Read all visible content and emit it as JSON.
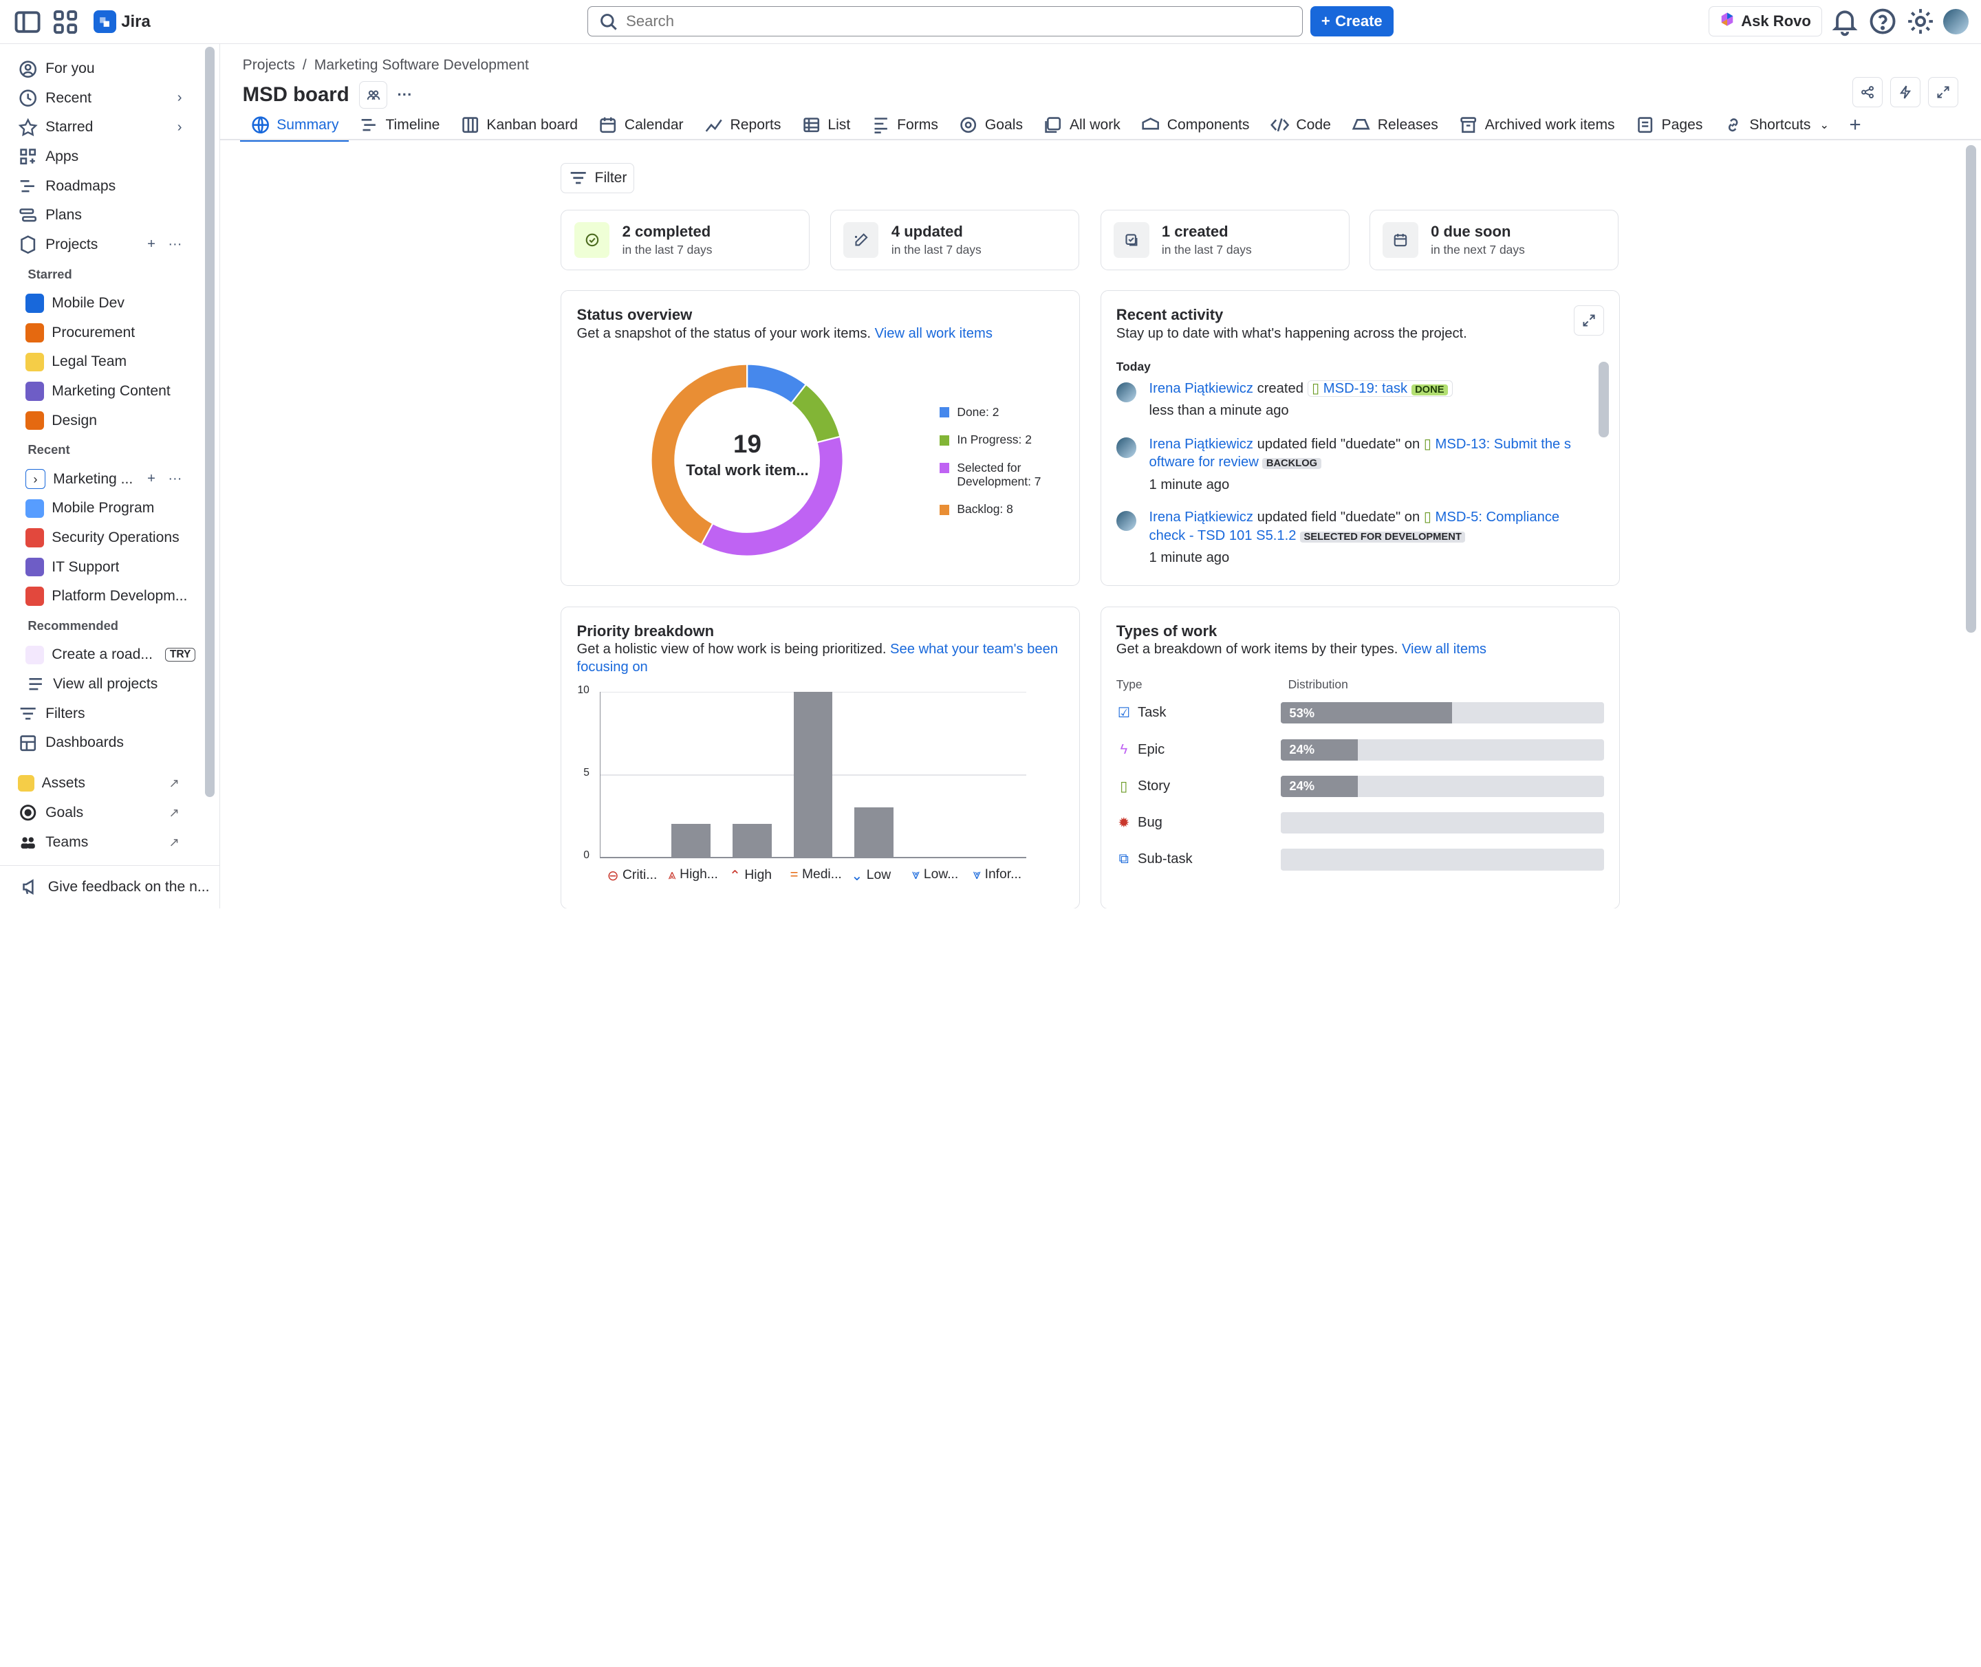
{
  "topbar": {
    "app_name": "Jira",
    "search_placeholder": "Search",
    "create_label": "Create",
    "ask_rovo_label": "Ask Rovo"
  },
  "sidebar": {
    "nav": [
      {
        "label": "For you",
        "icon": "user-circle-icon"
      },
      {
        "label": "Recent",
        "icon": "clock-icon"
      },
      {
        "label": "Starred",
        "icon": "star-icon"
      },
      {
        "label": "Apps",
        "icon": "apps-icon"
      },
      {
        "label": "Roadmaps",
        "icon": "roadmap-icon"
      },
      {
        "label": "Plans",
        "icon": "plans-icon"
      },
      {
        "label": "Projects",
        "icon": "projects-icon"
      }
    ],
    "starred_heading": "Starred",
    "starred": [
      {
        "label": "Mobile Dev",
        "color": "#1868db"
      },
      {
        "label": "Procurement",
        "color": "#e56910"
      },
      {
        "label": "Legal Team",
        "color": "#f5cd47"
      },
      {
        "label": "Marketing Content",
        "color": "#6a9a23"
      },
      {
        "label": "Design",
        "color": "#e56910"
      }
    ],
    "recent_heading": "Recent",
    "recent": [
      {
        "label": "Marketing ...",
        "color": "#1868db"
      },
      {
        "label": "Mobile Program",
        "color": "#579dff"
      },
      {
        "label": "Security Operations",
        "color": "#e2483d"
      },
      {
        "label": "IT Support",
        "color": "#6e5dc6"
      },
      {
        "label": "Platform Developm...",
        "color": "#e2483d"
      }
    ],
    "recommended_heading": "Recommended",
    "recommended": [
      {
        "label": "Create a road...",
        "badge": "TRY"
      }
    ],
    "view_all_projects": "View all projects",
    "bottom_nav": [
      {
        "label": "Filters",
        "icon": "filter-icon"
      },
      {
        "label": "Dashboards",
        "icon": "dashboard-icon"
      }
    ],
    "external": [
      {
        "label": "Assets",
        "color": "#f5cd47"
      },
      {
        "label": "Goals",
        "color": "#292a2e"
      },
      {
        "label": "Teams",
        "color": "#292a2e"
      }
    ],
    "feedback_label": "Give feedback on the n..."
  },
  "header": {
    "breadcrumb": [
      "Projects",
      "Marketing Software Development"
    ],
    "title": "MSD board"
  },
  "tabs": [
    {
      "label": "Summary",
      "icon": "globe-icon",
      "active": true
    },
    {
      "label": "Timeline",
      "icon": "timeline-icon"
    },
    {
      "label": "Kanban board",
      "icon": "board-icon"
    },
    {
      "label": "Calendar",
      "icon": "calendar-icon"
    },
    {
      "label": "Reports",
      "icon": "reports-icon"
    },
    {
      "label": "List",
      "icon": "list-icon"
    },
    {
      "label": "Forms",
      "icon": "forms-icon"
    },
    {
      "label": "Goals",
      "icon": "goals-icon"
    },
    {
      "label": "All work",
      "icon": "all-work-icon"
    },
    {
      "label": "Components",
      "icon": "components-icon"
    },
    {
      "label": "Code",
      "icon": "code-icon"
    },
    {
      "label": "Releases",
      "icon": "releases-icon"
    },
    {
      "label": "Archived work items",
      "icon": "archive-icon"
    },
    {
      "label": "Pages",
      "icon": "pages-icon"
    },
    {
      "label": "Shortcuts",
      "icon": "link-icon"
    }
  ],
  "filter_label": "Filter",
  "stats": [
    {
      "value": "2 completed",
      "sub": "in the last 7 days",
      "icon": "check-circle-icon"
    },
    {
      "value": "4 updated",
      "sub": "in the last 7 days",
      "icon": "pencil-icon"
    },
    {
      "value": "1 created",
      "sub": "in the last 7 days",
      "icon": "created-icon"
    },
    {
      "value": "0 due soon",
      "sub": "in the next 7 days",
      "icon": "calendar-icon"
    }
  ],
  "status_overview": {
    "title": "Status overview",
    "subtitle": "Get a snapshot of the status of your work items.",
    "link": "View all work items",
    "total": "19",
    "total_label": "Total work item...",
    "segments": [
      {
        "label": "Done: 2",
        "value": 2,
        "color": "#4688ec"
      },
      {
        "label": "In Progress: 2",
        "value": 2,
        "color": "#82b536"
      },
      {
        "label": "Selected for Development: 7",
        "value": 7,
        "color": "#bf63f3"
      },
      {
        "label": "Backlog: 8",
        "value": 8,
        "color": "#e98e34"
      }
    ]
  },
  "recent_activity": {
    "title": "Recent activity",
    "subtitle": "Stay up to date with what's happening across the project.",
    "today_label": "Today",
    "items": [
      {
        "user": "Irena Piątkiewicz",
        "action": "created",
        "work_item": "MSD-19: task",
        "status": "DONE",
        "time": "less than a minute ago"
      },
      {
        "user": "Irena Piątkiewicz",
        "action": "updated field \"duedate\" on",
        "work_item": "MSD-13: Submit the s",
        "work_item_cont": "oftware for review",
        "status": "BACKLOG",
        "time": "1 minute ago"
      },
      {
        "user": "Irena Piątkiewicz",
        "action": "updated field \"duedate\" on",
        "work_item": "MSD-5: Compliance",
        "work_item_cont": "check -  TSD 101 S5.1.2",
        "status": "SELECTED FOR DEVELOPMENT",
        "time": "1 minute ago"
      }
    ]
  },
  "priority_breakdown": {
    "title": "Priority breakdown",
    "subtitle": "Get a holistic view of how work is being prioritized.",
    "link": "See what your team's been focusing on"
  },
  "chart_data": {
    "type": "bar",
    "categories": [
      "Criti...",
      "High...",
      "High",
      "Medi...",
      "Low",
      "Low...",
      "Infor..."
    ],
    "values": [
      0,
      2,
      2,
      10,
      3,
      0,
      0
    ],
    "yticks": [
      "10",
      "5",
      "0"
    ],
    "ylim": [
      0,
      10
    ],
    "grid": true
  },
  "types_of_work": {
    "title": "Types of work",
    "subtitle": "Get a breakdown of work items by their types.",
    "link": "View all items",
    "col_type": "Type",
    "col_distribution": "Distribution",
    "rows": [
      {
        "name": "Task",
        "percent": 53,
        "label": "53%",
        "icon": "task-icon"
      },
      {
        "name": "Epic",
        "percent": 24,
        "label": "24%",
        "icon": "epic-icon"
      },
      {
        "name": "Story",
        "percent": 24,
        "label": "24%",
        "icon": "story-icon"
      },
      {
        "name": "Bug",
        "percent": 0,
        "label": "",
        "icon": "bug-icon"
      },
      {
        "name": "Sub-task",
        "percent": 0,
        "label": "",
        "icon": "subtask-icon"
      }
    ]
  }
}
